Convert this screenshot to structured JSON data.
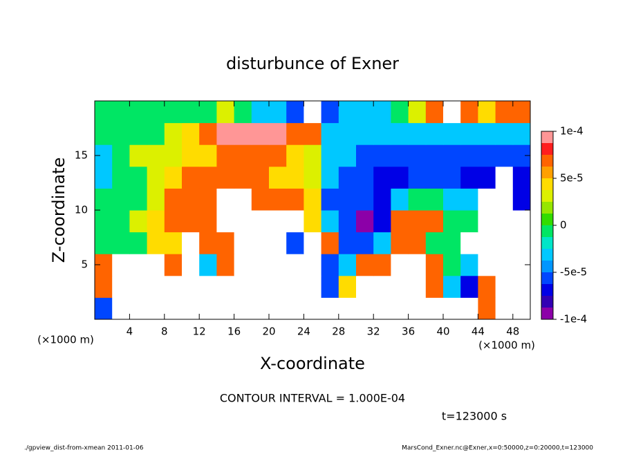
{
  "chart_data": {
    "type": "heatmap",
    "title": "disturbunce of Exner",
    "xlabel": "X-coordinate",
    "ylabel": "Z-coordinate",
    "x_unit_left": "(×1000 m)",
    "x_unit_right": "(×1000 m)",
    "contour_interval": "CONTOUR INTERVAL = 1.000E-04",
    "time_label": "t=123000 s",
    "footer_left": "./gpview_dist-from-xmean  2011-01-06",
    "footer_right": "MarsCond_Exner.nc@Exner,x=0:50000,z=0:20000,t=123000",
    "xlim": [
      0,
      50
    ],
    "ylim": [
      0,
      20
    ],
    "xticks": [
      4,
      8,
      12,
      16,
      20,
      24,
      28,
      32,
      36,
      40,
      44,
      48
    ],
    "yticks": [
      5,
      10,
      15
    ],
    "x": [
      1,
      3,
      5,
      7,
      9,
      11,
      13,
      15,
      17,
      19,
      21,
      23,
      25,
      27,
      29,
      31,
      33,
      35,
      37,
      39,
      41,
      43,
      45,
      47,
      49
    ],
    "z": [
      1,
      3,
      5,
      7,
      9,
      11,
      13,
      15,
      17,
      19
    ],
    "values": [
      [
        -5e-05,
        0.00015,
        0.00015,
        0.00015,
        0.00015,
        0.00015,
        0.00015,
        0.00015,
        0.00015,
        0.00015,
        -0.00015,
        -0.00015,
        -0.00015,
        -0.00015,
        -0.00015,
        0.00015,
        -0.00015,
        -0.00015,
        0.00015,
        0.00015,
        0.00015,
        0.00015,
        7e-05,
        0.00015,
        0.00015
      ],
      [
        7e-05,
        0.00015,
        0.00015,
        0.00015,
        0.00015,
        0.00015,
        0.00015,
        0.00015,
        0.00015,
        0.00015,
        -0.00015,
        -0.00015,
        -0.00015,
        -5e-05,
        5e-05,
        0.00015,
        0.00015,
        0.00015,
        0.00015,
        7e-05,
        -3e-05,
        -7e-05,
        7e-05,
        0.00015,
        0.00015
      ],
      [
        7e-05,
        0.00015,
        0.00015,
        0.00015,
        7e-05,
        0.00015,
        -3e-05,
        7e-05,
        -0.00015,
        -0.00015,
        -0.00015,
        -0.00015,
        -0.00015,
        -5e-05,
        -3e-05,
        7e-05,
        7e-05,
        0.00015,
        0.00015,
        7e-05,
        0,
        -3e-05,
        0.00015,
        0.00015,
        0.00015
      ],
      [
        0,
        0,
        0,
        5e-05,
        5e-05,
        0.00015,
        7e-05,
        7e-05,
        0.00015,
        0.00015,
        0.00015,
        -5e-05,
        0.00015,
        7e-05,
        -5e-05,
        -5e-05,
        -3e-05,
        7e-05,
        7e-05,
        0,
        0,
        0.00015,
        0.00015,
        0.00015,
        0.00015
      ],
      [
        0,
        0,
        3e-05,
        5e-05,
        7e-05,
        7e-05,
        7e-05,
        0.00015,
        0.00015,
        0.00015,
        0.00015,
        0.00015,
        5e-05,
        -3e-05,
        -5e-05,
        -9e-05,
        -7e-05,
        7e-05,
        7e-05,
        7e-05,
        0,
        0,
        0.00015,
        0.00015,
        0.00015
      ],
      [
        0,
        0,
        0,
        3e-05,
        7e-05,
        7e-05,
        7e-05,
        0.00015,
        0.00015,
        7e-05,
        7e-05,
        7e-05,
        5e-05,
        -5e-05,
        -5e-05,
        -5e-05,
        -7e-05,
        -3e-05,
        0,
        0,
        -3e-05,
        -3e-05,
        0.00015,
        0.00015,
        -7e-05
      ],
      [
        -3e-05,
        0,
        0,
        3e-05,
        5e-05,
        7e-05,
        7e-05,
        7e-05,
        7e-05,
        7e-05,
        5e-05,
        5e-05,
        3e-05,
        -3e-05,
        -5e-05,
        -5e-05,
        -7e-05,
        -7e-05,
        -5e-05,
        -5e-05,
        -5e-05,
        -7e-05,
        -7e-05,
        -0.00015,
        -7e-05
      ],
      [
        -3e-05,
        0,
        3e-05,
        3e-05,
        3e-05,
        5e-05,
        5e-05,
        7e-05,
        7e-05,
        7e-05,
        7e-05,
        5e-05,
        3e-05,
        -3e-05,
        -3e-05,
        -5e-05,
        -5e-05,
        -5e-05,
        -5e-05,
        -5e-05,
        -5e-05,
        -5e-05,
        -5e-05,
        -5e-05,
        -5e-05
      ],
      [
        0,
        0,
        0,
        0,
        3e-05,
        5e-05,
        7e-05,
        9.5e-05,
        9.5e-05,
        9.5e-05,
        9.5e-05,
        7e-05,
        7e-05,
        -3e-05,
        -3e-05,
        -3e-05,
        -3e-05,
        -3e-05,
        -3e-05,
        -3e-05,
        -3e-05,
        -3e-05,
        -3e-05,
        -3e-05,
        -3e-05
      ],
      [
        0,
        0,
        0,
        0,
        0,
        0,
        0,
        3e-05,
        0,
        -3e-05,
        -3e-05,
        -5e-05,
        0.00015,
        -5e-05,
        -3e-05,
        -3e-05,
        -3e-05,
        0,
        3e-05,
        7e-05,
        0.00015,
        7e-05,
        5e-05,
        7e-05,
        7e-05
      ]
    ],
    "levels": [
      -0.0001,
      -8.75e-05,
      -7.5e-05,
      -6.25e-05,
      -5e-05,
      -3.75e-05,
      -2.5e-05,
      -1.25e-05,
      0,
      1.25e-05,
      2.5e-05,
      3.75e-05,
      5e-05,
      6.25e-05,
      7.5e-05,
      8.75e-05,
      0.0001
    ],
    "colors": [
      "#8c00a8",
      "#3200b4",
      "#0000e6",
      "#0046ff",
      "#0096ff",
      "#00c8ff",
      "#00e6c8",
      "#00e664",
      "#32dc00",
      "#96e600",
      "#dcf000",
      "#ffdc00",
      "#ffa000",
      "#ff6400",
      "#ff1e1e",
      "#ff9696"
    ],
    "out_of_range_color": "#ffffff",
    "colorbar_ticks": [
      {
        "value": 0.0001,
        "label": "1e-4"
      },
      {
        "value": 5e-05,
        "label": "5e-5"
      },
      0,
      {
        "value": -5e-05,
        "label": "-5e-5"
      },
      {
        "value": -0.0001,
        "label": "-1e-4"
      }
    ]
  }
}
